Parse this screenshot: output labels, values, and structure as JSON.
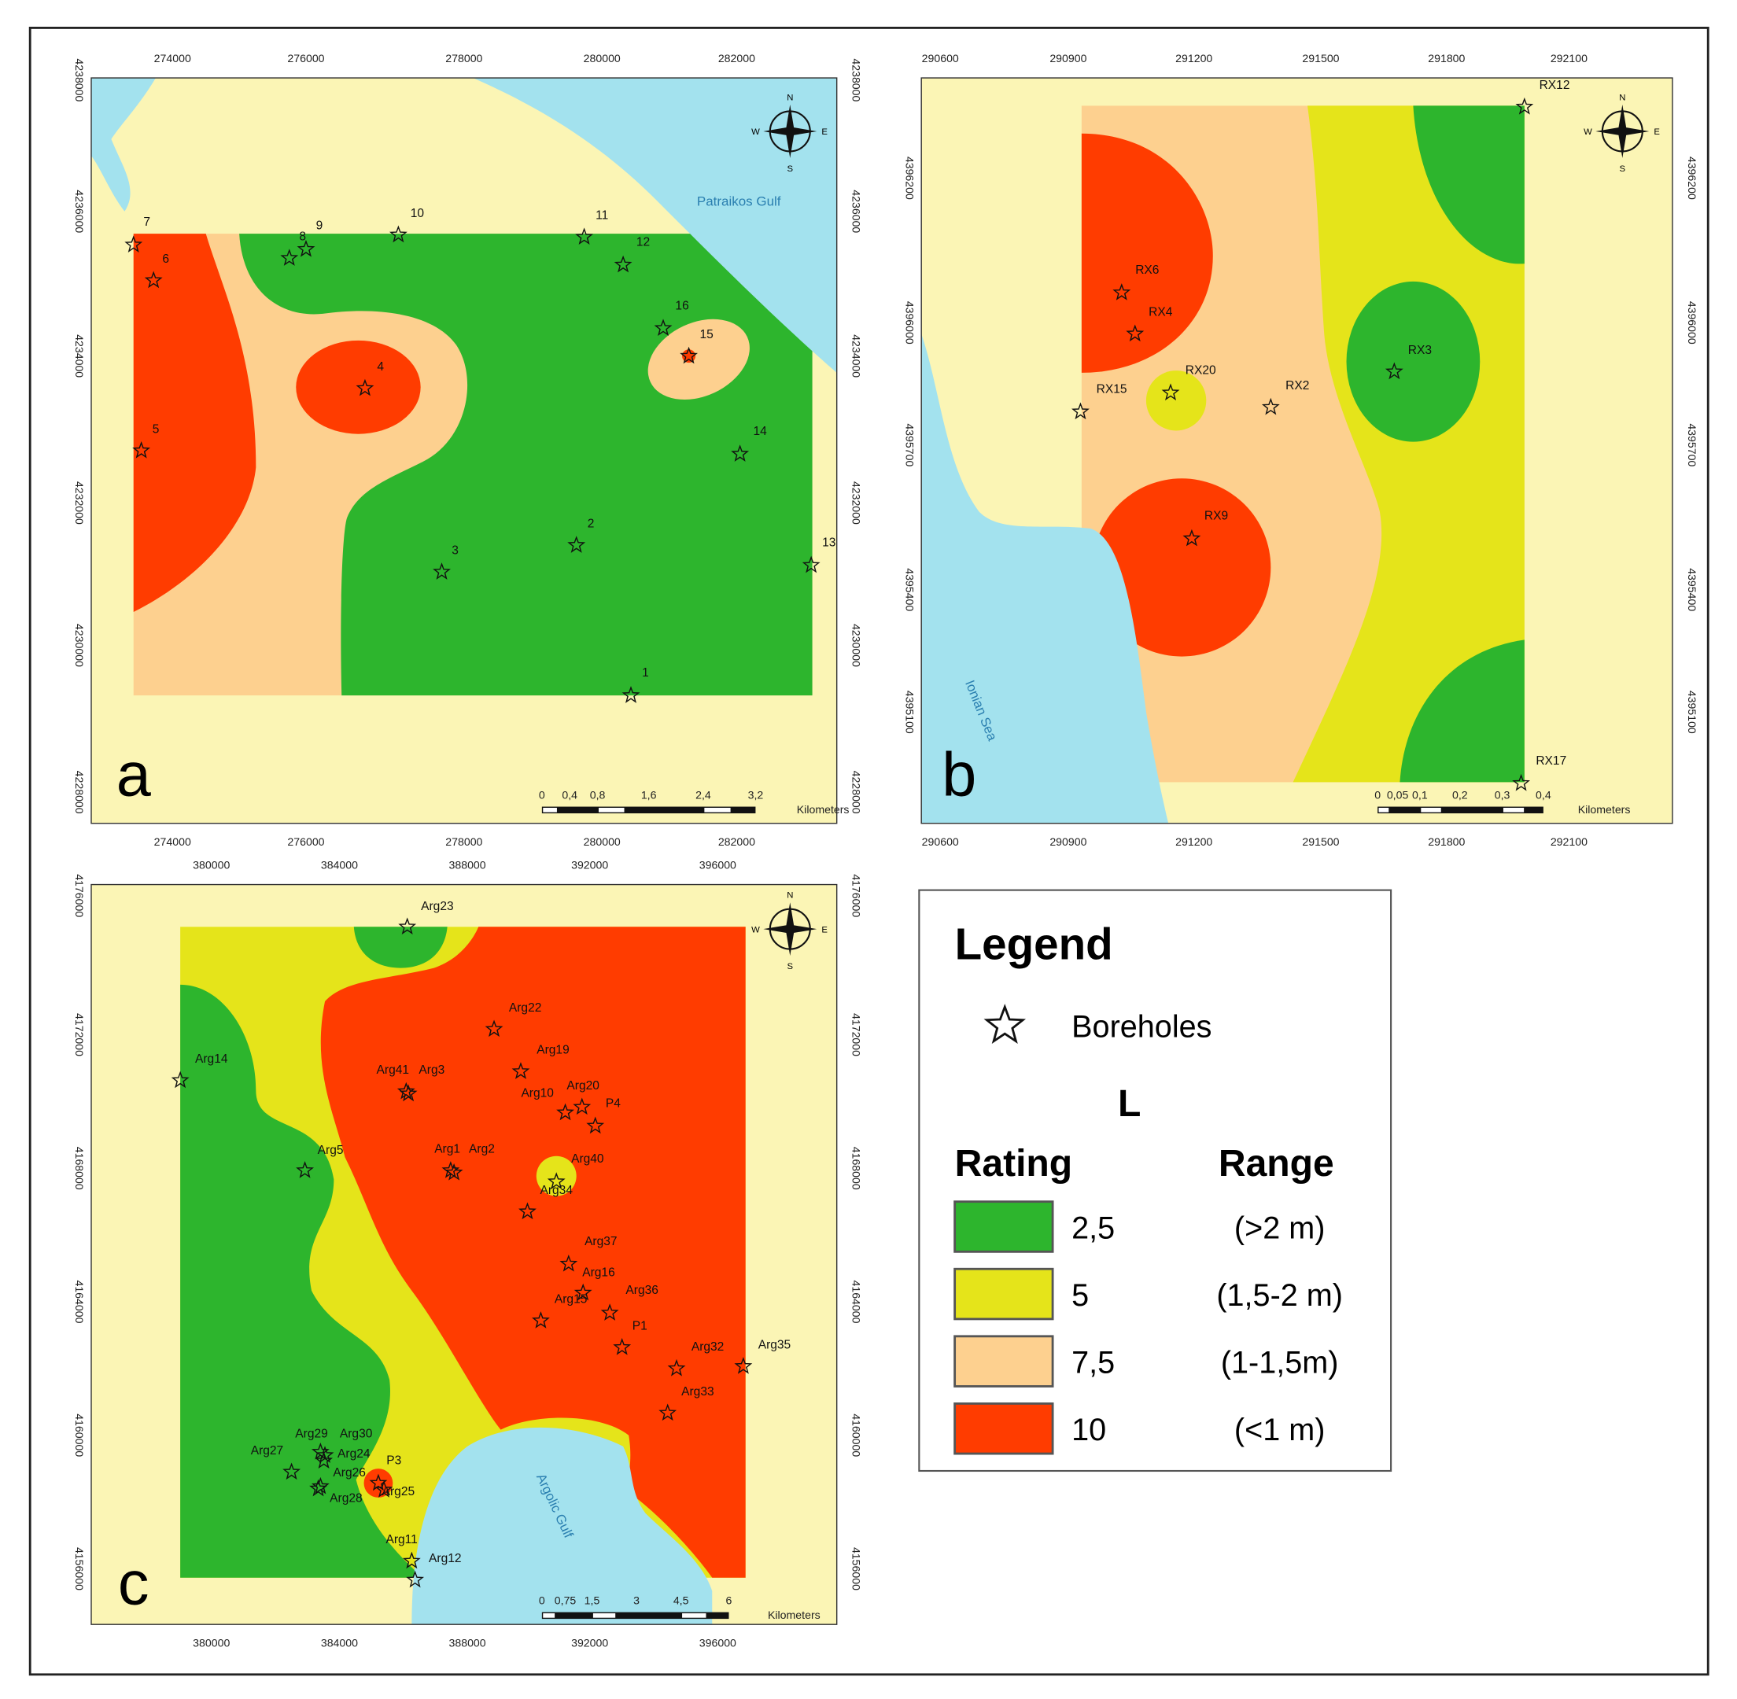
{
  "compass": [
    "N",
    "E",
    "S",
    "W"
  ],
  "panels": [
    {
      "letter": "a",
      "x_ticks": [
        274000,
        276000,
        278000,
        280000,
        282000
      ],
      "y_ticks": [
        4238000,
        4236000,
        4234000,
        4232000,
        4230000,
        4228000
      ],
      "water_labels": [
        "Patraikos Gulf"
      ],
      "scale_labels": [
        "0",
        "0,4",
        "0,8",
        "1,6",
        "2,4",
        "3,2"
      ],
      "scale_unit": "Kilometers",
      "boreholes": [
        "7",
        "6",
        "8",
        "9",
        "10",
        "11",
        "12",
        "16",
        "15",
        "4",
        "5",
        "14",
        "2",
        "3",
        "13",
        "1"
      ]
    },
    {
      "letter": "b",
      "x_ticks": [
        290600,
        290900,
        291200,
        291500,
        291800,
        292100
      ],
      "y_ticks": [
        4396200,
        4396000,
        4395700,
        4395400,
        4395100
      ],
      "water_labels": [
        "Ionian Sea"
      ],
      "scale_labels": [
        "0",
        "0,05",
        "0,1",
        "0,2",
        "0,3",
        "0,4"
      ],
      "scale_unit": "Kilometers",
      "boreholes": [
        "RX12",
        "RX6",
        "RX4",
        "RX20",
        "RX15",
        "RX2",
        "RX3",
        "RX9",
        "RX17"
      ]
    },
    {
      "letter": "c",
      "x_ticks": [
        380000,
        384000,
        388000,
        392000,
        396000
      ],
      "y_ticks": [
        4176000,
        4172000,
        4168000,
        4164000,
        4160000,
        4156000
      ],
      "water_labels": [
        "Argolic Gulf"
      ],
      "scale_labels": [
        "0",
        "0,75",
        "1,5",
        "3",
        "4,5",
        "6"
      ],
      "scale_unit": "Kilometers",
      "boreholes": [
        "Arg23",
        "Arg22",
        "Arg14",
        "Arg19",
        "Arg41",
        "Arg3",
        "Arg10",
        "Arg20",
        "P4",
        "Arg5",
        "Arg1",
        "Arg2",
        "Arg40",
        "Arg34",
        "Arg37",
        "Arg16",
        "Arg15",
        "Arg36",
        "P1",
        "Arg32",
        "Arg35",
        "Arg33",
        "Arg29",
        "Arg30",
        "Arg27",
        "Arg24",
        "P3",
        "Arg26",
        "Arg25",
        "Arg28",
        "Arg11",
        "Arg12"
      ]
    }
  ],
  "legend": {
    "title": "Legend",
    "boreholes": "Boreholes",
    "parameter": "L",
    "rating_header": "Rating",
    "range_header": "Range",
    "items": [
      {
        "rating": "2,5",
        "range": "(>2 m)",
        "color": "#2db52d"
      },
      {
        "rating": "5",
        "range": "(1,5-2 m)",
        "color": "#e5e41a"
      },
      {
        "rating": "7,5",
        "range": "(1-1,5m)",
        "color": "#fdd08f"
      },
      {
        "rating": "10",
        "range": "(<1 m)",
        "color": "#ff3c00"
      }
    ]
  }
}
